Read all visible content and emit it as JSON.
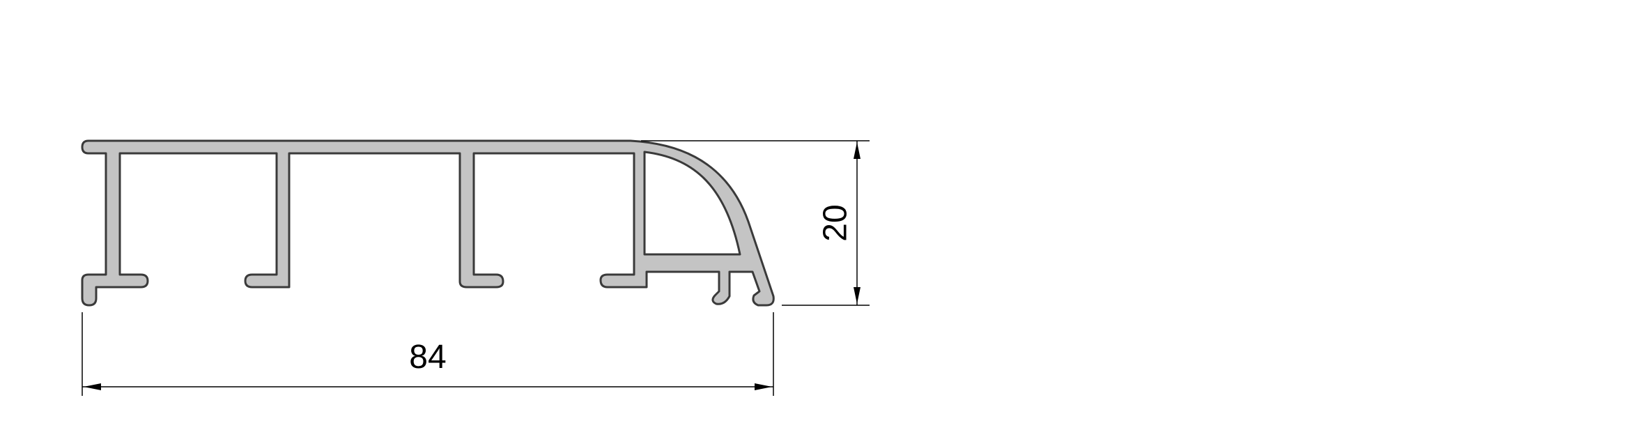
{
  "drawing": {
    "colors": {
      "profile_fill": "#c4c4c4",
      "profile_stroke": "#3a3a3a",
      "dimension": "#000000",
      "background": "#ffffff"
    },
    "dimensions": {
      "width_value": "84",
      "height_value": "20"
    }
  }
}
